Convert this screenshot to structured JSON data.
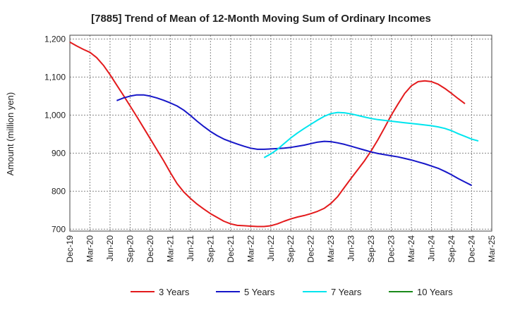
{
  "chart_data": {
    "type": "line",
    "title": "[7885]  Trend of Mean of 12-Month Moving Sum of Ordinary Incomes",
    "ylabel": "Amount (million yen)",
    "xlabel": "",
    "ylim": [
      695,
      1210
    ],
    "y_ticks": [
      700,
      800,
      900,
      1000,
      1100,
      1200
    ],
    "y_tick_labels": [
      "700",
      "800",
      "900",
      "1,000",
      "1,100",
      "1,200"
    ],
    "x_tick_labels": [
      "Dec-19",
      "Mar-20",
      "Jun-20",
      "Sep-20",
      "Dec-20",
      "Mar-21",
      "Jun-21",
      "Sep-21",
      "Dec-21",
      "Mar-22",
      "Jun-22",
      "Sep-22",
      "Dec-22",
      "Mar-23",
      "Jun-23",
      "Sep-23",
      "Dec-23",
      "Mar-24",
      "Jun-24",
      "Sep-24",
      "Dec-24",
      "Mar-25"
    ],
    "grid": true,
    "legend_position": "bottom",
    "series": [
      {
        "name": "3 Years",
        "color": "#e31a1c",
        "start_index": 0,
        "values": [
          1192,
          1182,
          1173,
          1165,
          1151,
          1131,
          1106,
          1079,
          1052,
          1024,
          996,
          967,
          938,
          909,
          880,
          849,
          820,
          798,
          781,
          766,
          753,
          741,
          731,
          721,
          714,
          710,
          709,
          708,
          707,
          707,
          709,
          714,
          721,
          727,
          732,
          736,
          741,
          747,
          755,
          768,
          786,
          810,
          834,
          857,
          880,
          906,
          935,
          967,
          1000,
          1029,
          1057,
          1077,
          1088,
          1090,
          1088,
          1081,
          1070,
          1057,
          1043,
          1030
        ]
      },
      {
        "name": "5 Years",
        "color": "#1616c8",
        "start_index": 0,
        "values": [
          null,
          null,
          null,
          null,
          null,
          null,
          null,
          1038,
          1045,
          1050,
          1053,
          1053,
          1050,
          1045,
          1039,
          1032,
          1024,
          1013,
          999,
          984,
          970,
          957,
          946,
          937,
          930,
          924,
          918,
          913,
          910,
          910,
          911,
          912,
          913,
          915,
          918,
          921,
          925,
          929,
          931,
          930,
          927,
          923,
          918,
          913,
          908,
          903,
          899,
          896,
          893,
          890,
          886,
          882,
          877,
          872,
          866,
          860,
          852,
          843,
          833,
          824,
          815
        ]
      },
      {
        "name": "7 Years",
        "color": "#00e5ee",
        "start_index": 0,
        "values": [
          null,
          null,
          null,
          null,
          null,
          null,
          null,
          null,
          null,
          null,
          null,
          null,
          null,
          null,
          null,
          null,
          null,
          null,
          null,
          null,
          null,
          null,
          null,
          null,
          null,
          null,
          null,
          null,
          null,
          888,
          898,
          910,
          925,
          940,
          953,
          965,
          976,
          987,
          997,
          1004,
          1007,
          1006,
          1003,
          999,
          995,
          991,
          988,
          986,
          984,
          982,
          980,
          978,
          976,
          974,
          972,
          969,
          965,
          959,
          951,
          944,
          937,
          932
        ]
      },
      {
        "name": "10 Years",
        "color": "#1a8a1a",
        "start_index": 0,
        "values": []
      }
    ]
  }
}
